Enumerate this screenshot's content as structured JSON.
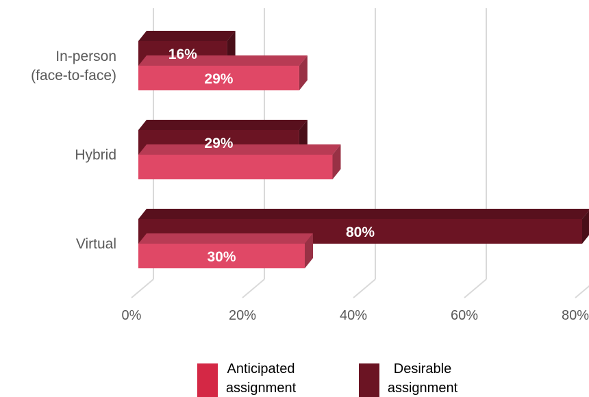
{
  "chart_data": {
    "type": "bar",
    "orientation": "horizontal",
    "style": "3d",
    "categories": [
      "In-person\n(face-to-face)",
      "Hybrid",
      "Virtual"
    ],
    "series": [
      {
        "name": "Anticipated assignment",
        "values": [
          29,
          35,
          30
        ],
        "labels": [
          "29%",
          "",
          "30%"
        ],
        "color": "#e04866"
      },
      {
        "name": "Desirable assignment",
        "values": [
          16,
          29,
          80
        ],
        "labels": [
          "16%",
          "29%",
          "80%"
        ],
        "color": "#6b1423"
      }
    ],
    "xlim": [
      0,
      80
    ],
    "xticks": [
      "0%",
      "20%",
      "40%",
      "60%",
      "80%"
    ],
    "grid": true,
    "legend": "bottom",
    "legend_swatch_colors": [
      "#d42845",
      "#6b1423"
    ],
    "legend_lines": [
      [
        "Anticipated",
        "assignment"
      ],
      [
        "Desirable",
        "assignment"
      ]
    ]
  }
}
